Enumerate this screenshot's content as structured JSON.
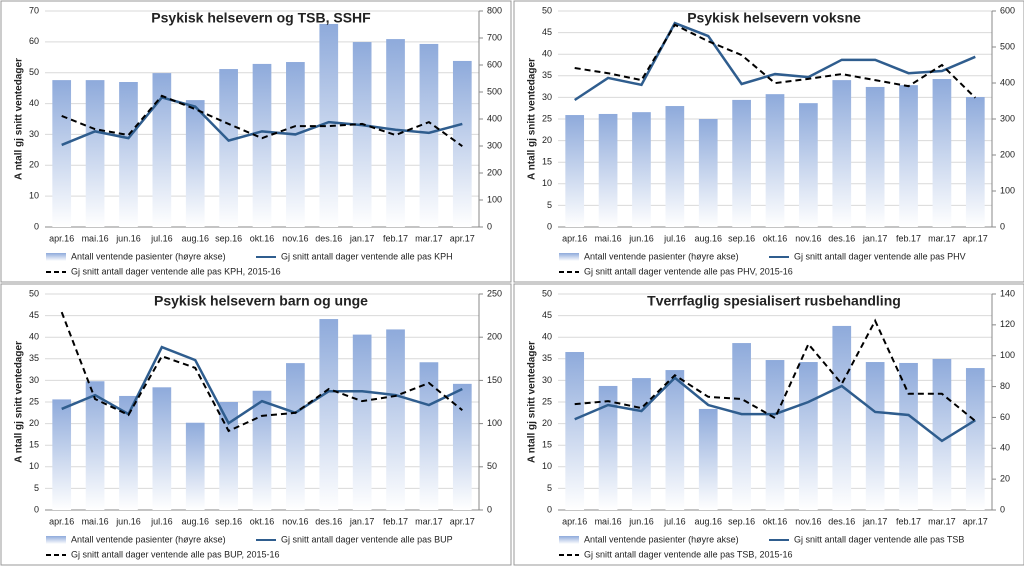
{
  "chart_data": [
    {
      "type": "combo",
      "title": "Psykisk helsevern og TSB, SSHF",
      "y_label": "A ntall gj snitt ventedager",
      "categories": [
        "apr.16",
        "mai.16",
        "jun.16",
        "jul.16",
        "aug.16",
        "sep.16",
        "okt.16",
        "nov.16",
        "des.16",
        "jan.17",
        "feb.17",
        "mar.17",
        "apr.17"
      ],
      "ylim": [
        0,
        70
      ],
      "yticks": [
        0,
        10,
        20,
        30,
        40,
        50,
        60,
        70
      ],
      "y2lim": [
        0,
        800
      ],
      "y2ticks": [
        0,
        100,
        200,
        300,
        400,
        500,
        600,
        700,
        800
      ],
      "grid": true,
      "series": [
        {
          "name": "Antall ventende pasienter (høyre akse)",
          "type": "bar",
          "axis": "y2",
          "color": "#8eaadb",
          "values": [
            544,
            544,
            537,
            570,
            470,
            585,
            604,
            611,
            752,
            685,
            696,
            678,
            615
          ]
        },
        {
          "name": "Gj snitt antall dager ventende alle pas KPH",
          "type": "line",
          "color": "#2f5d8e",
          "values": [
            26.6,
            31,
            28.8,
            42,
            39,
            28,
            31,
            30,
            34,
            33,
            31.5,
            30.5,
            33.4
          ]
        },
        {
          "name": "Gj snitt antall dager ventende alle pas KPH, 2015-16",
          "type": "line",
          "line_style": "dashed",
          "color": "#000000",
          "values": [
            36,
            31.7,
            29.8,
            42.5,
            38.2,
            33.4,
            28.8,
            32.7,
            32.7,
            33.4,
            29.8,
            34,
            26.2
          ]
        }
      ]
    },
    {
      "type": "combo",
      "title": "Psykisk helsevern voksne",
      "y_label": "A ntall gj snitt ventedager",
      "categories": [
        "apr.16",
        "mai.16",
        "jun.16",
        "jul.16",
        "aug.16",
        "sep.16",
        "okt.16",
        "nov.16",
        "des.16",
        "jan.17",
        "feb.17",
        "mar.17",
        "apr.17"
      ],
      "ylim": [
        0,
        50
      ],
      "yticks": [
        0,
        5,
        10,
        15,
        20,
        25,
        30,
        35,
        40,
        45,
        50
      ],
      "y2lim": [
        0,
        600
      ],
      "y2ticks": [
        0,
        100,
        200,
        300,
        400,
        500,
        600
      ],
      "grid": true,
      "series": [
        {
          "name": "Antall ventende pasienter (høyre akse)",
          "type": "bar",
          "axis": "y2",
          "color": "#8eaadb",
          "values": [
            311,
            314,
            319,
            336,
            300,
            353,
            369,
            344,
            408,
            389,
            394,
            411,
            361
          ]
        },
        {
          "name": "Gj snitt antall dager ventende alle pas PHV",
          "type": "line",
          "color": "#2f5d8e",
          "values": [
            29.4,
            34.5,
            32.9,
            47.2,
            44.2,
            33.1,
            35.4,
            34.7,
            38.7,
            38.7,
            35.6,
            36.1,
            39.4
          ]
        },
        {
          "name": "Gj snitt antall dager ventende alle pas PHV, 2015-16",
          "type": "line",
          "line_style": "dashed",
          "color": "#000000",
          "values": [
            36.8,
            35.6,
            34,
            46.8,
            43,
            39.8,
            33.3,
            34.3,
            35.4,
            34,
            32.6,
            37.5,
            29.9
          ]
        }
      ]
    },
    {
      "type": "combo",
      "title": "Psykisk helsevern barn og unge",
      "y_label": "A ntall gj snitt ventedager",
      "categories": [
        "apr.16",
        "mai.16",
        "jun.16",
        "jul.16",
        "aug.16",
        "sep.16",
        "okt.16",
        "nov.16",
        "des.16",
        "jan.17",
        "feb.17",
        "mar.17",
        "apr.17"
      ],
      "ylim": [
        0,
        50
      ],
      "yticks": [
        0,
        5,
        10,
        15,
        20,
        25,
        30,
        35,
        40,
        45,
        50
      ],
      "y2lim": [
        0,
        250
      ],
      "y2ticks": [
        0,
        50,
        100,
        150,
        200,
        250
      ],
      "grid": true,
      "series": [
        {
          "name": "Antall ventende pasienter (høyre akse)",
          "type": "bar",
          "axis": "y2",
          "color": "#8eaadb",
          "values": [
            128,
            149,
            132,
            142,
            101,
            125,
            138,
            170,
            221,
            203,
            209,
            171,
            146
          ]
        },
        {
          "name": "Gj snitt antall dager ventende alle pas BUP",
          "type": "line",
          "color": "#2f5d8e",
          "values": [
            23.4,
            26.6,
            22.2,
            37.7,
            34.7,
            20.1,
            25.2,
            22.5,
            27.5,
            27.5,
            26.6,
            24.3,
            28
          ]
        },
        {
          "name": "Gj snitt antall dager ventende alle pas BUP, 2015-16",
          "type": "line",
          "line_style": "dashed",
          "color": "#000000",
          "values": [
            45.8,
            25.7,
            22,
            35.6,
            32.9,
            18.3,
            21.8,
            22.5,
            28,
            25.2,
            26.4,
            29.4,
            23.1
          ]
        }
      ]
    },
    {
      "type": "combo",
      "title": "Tverrfaglig spesialisert rusbehandling",
      "y_label": "A ntall gj snitt ventedager",
      "categories": [
        "apr.16",
        "mai.16",
        "jun.16",
        "jul.16",
        "aug.16",
        "sep.16",
        "okt.16",
        "nov.16",
        "des.16",
        "jan.17",
        "feb.17",
        "mar.17",
        "apr.17"
      ],
      "ylim": [
        0,
        50
      ],
      "yticks": [
        0,
        5,
        10,
        15,
        20,
        25,
        30,
        35,
        40,
        45,
        50
      ],
      "y2lim": [
        0,
        140
      ],
      "y2ticks": [
        0,
        20,
        40,
        60,
        80,
        100,
        120,
        140
      ],
      "grid": true,
      "series": [
        {
          "name": "Antall ventende pasienter (høyre akse)",
          "type": "bar",
          "axis": "y2",
          "color": "#8eaadb",
          "values": [
            102.4,
            80.4,
            85.5,
            90.7,
            65.5,
            108.2,
            97.2,
            95.9,
            119.3,
            95.9,
            95.3,
            97.9,
            92
          ]
        },
        {
          "name": "Gj snitt antall dager ventende alle pas TSB",
          "type": "line",
          "color": "#2f5d8e",
          "values": [
            21,
            24.3,
            22.9,
            30.6,
            24.3,
            22.2,
            22.2,
            25,
            28.7,
            22.7,
            22,
            16,
            20.8
          ]
        },
        {
          "name": "Gj snitt antall dager ventende alle pas TSB, 2015-16",
          "type": "line",
          "line_style": "dashed",
          "color": "#000000",
          "values": [
            24.5,
            25.2,
            23.6,
            31.2,
            26.2,
            25.7,
            21.3,
            38.4,
            29.2,
            43.8,
            26.9,
            26.9,
            20.6
          ]
        }
      ]
    }
  ]
}
